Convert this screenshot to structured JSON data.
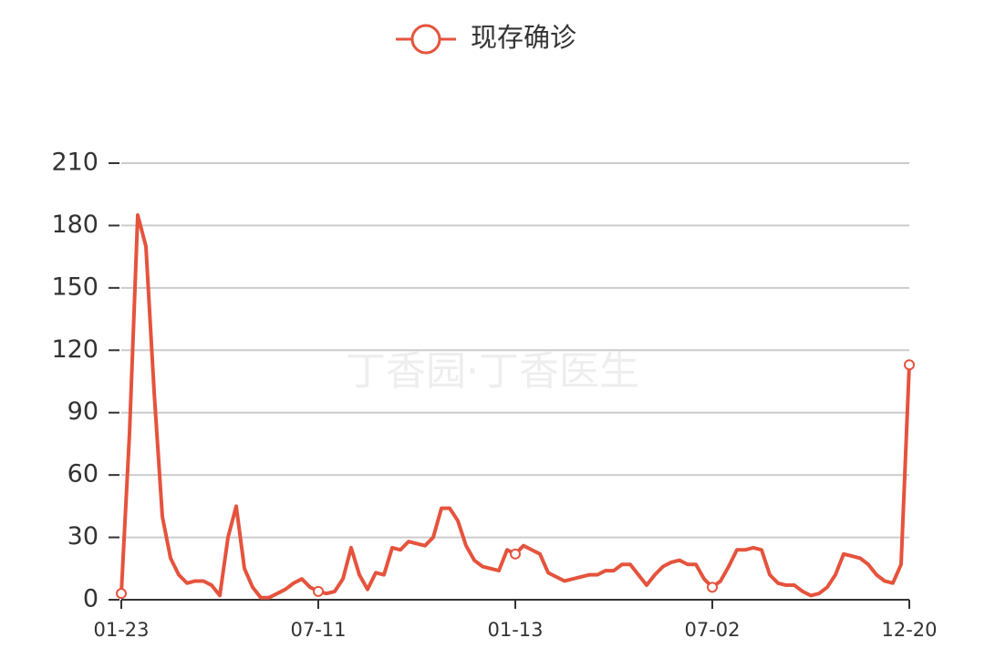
{
  "chart_data": {
    "type": "line",
    "watermark": "丁香园·丁香医生",
    "categories": [
      "01-23",
      null,
      null,
      null,
      null,
      null,
      null,
      null,
      null,
      null,
      null,
      null,
      null,
      null,
      null,
      null,
      null,
      null,
      null,
      null,
      null,
      null,
      null,
      null,
      "07-11",
      null,
      null,
      null,
      null,
      null,
      null,
      null,
      null,
      null,
      null,
      null,
      null,
      null,
      null,
      null,
      null,
      null,
      null,
      null,
      null,
      null,
      null,
      null,
      "01-13",
      null,
      null,
      null,
      null,
      null,
      null,
      null,
      null,
      null,
      null,
      null,
      null,
      null,
      null,
      null,
      null,
      null,
      null,
      null,
      null,
      null,
      null,
      null,
      "07-02",
      null,
      null,
      null,
      null,
      null,
      null,
      null,
      null,
      null,
      null,
      null,
      null,
      null,
      null,
      null,
      null,
      null,
      null,
      null,
      null,
      null,
      null,
      null,
      "12-20"
    ],
    "series": [
      {
        "name": "现存确诊",
        "color": "#e5533d",
        "values": [
          3,
          80,
          185,
          170,
          100,
          40,
          20,
          12,
          8,
          9,
          9,
          7,
          2,
          30,
          45,
          15,
          6,
          1,
          1,
          3,
          5,
          8,
          10,
          6,
          4,
          3,
          4,
          10,
          25,
          12,
          5,
          13,
          12,
          25,
          24,
          28,
          27,
          26,
          30,
          44,
          44,
          38,
          26,
          19,
          16,
          15,
          14,
          24,
          22,
          26,
          24,
          22,
          13,
          11,
          9,
          10,
          11,
          12,
          12,
          14,
          14,
          17,
          17,
          12,
          7,
          12,
          16,
          18,
          19,
          17,
          17,
          10,
          6,
          9,
          16,
          24,
          24,
          25,
          24,
          12,
          8,
          7,
          7,
          4,
          2,
          3,
          6,
          12,
          22,
          21,
          20,
          17,
          12,
          9,
          8,
          17,
          113
        ]
      }
    ],
    "ylim": [
      0,
      210
    ],
    "yticks": [
      0,
      30,
      60,
      90,
      120,
      150,
      180,
      210
    ],
    "grid": true
  }
}
